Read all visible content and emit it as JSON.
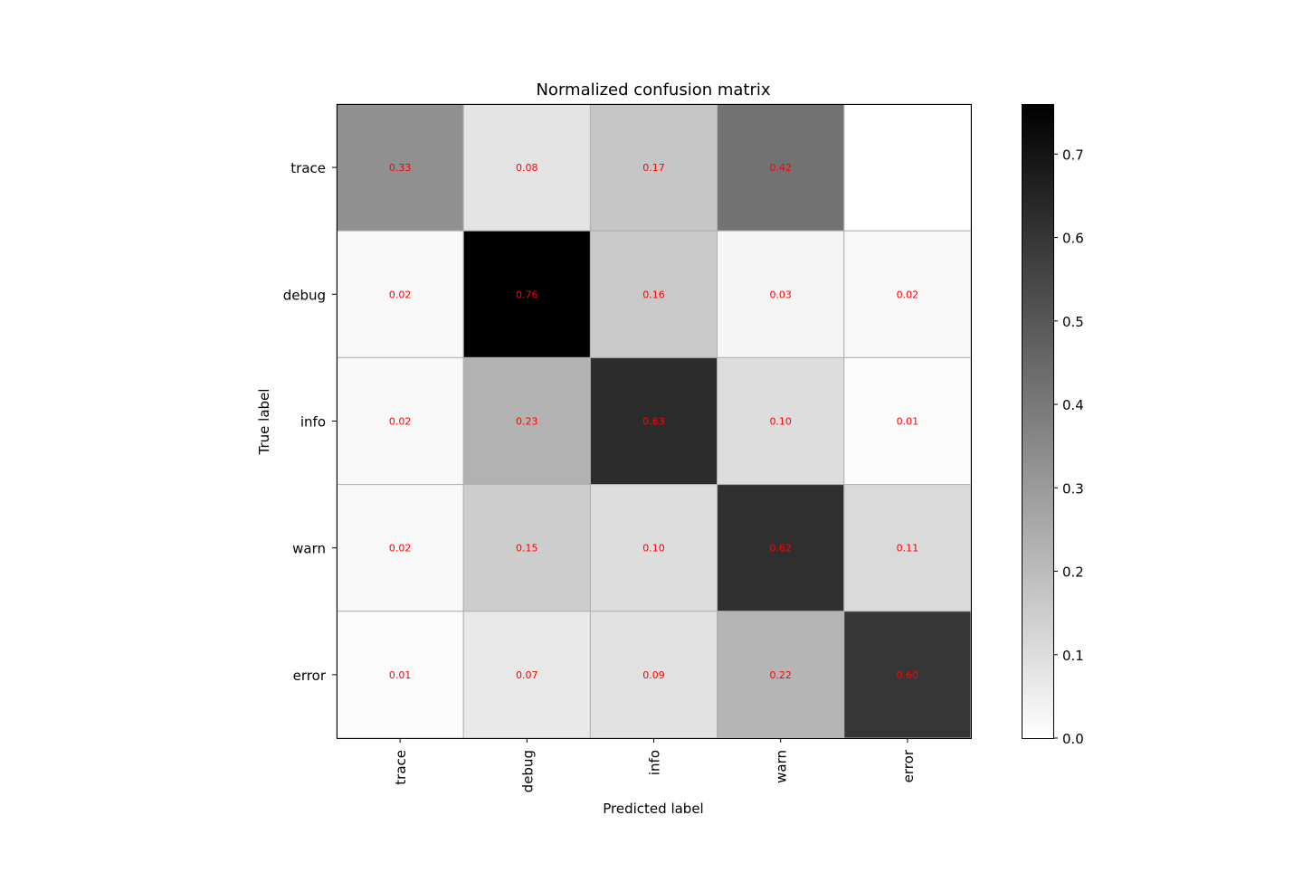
{
  "chart_data": {
    "type": "heatmap",
    "title": "Normalized confusion matrix",
    "xlabel": "Predicted label",
    "ylabel": "True label",
    "x_categories": [
      "trace",
      "debug",
      "info",
      "warn",
      "error"
    ],
    "y_categories": [
      "trace",
      "debug",
      "info",
      "warn",
      "error"
    ],
    "values": [
      [
        0.33,
        0.08,
        0.17,
        0.42,
        0.0
      ],
      [
        0.02,
        0.76,
        0.16,
        0.03,
        0.02
      ],
      [
        0.02,
        0.23,
        0.63,
        0.1,
        0.01
      ],
      [
        0.02,
        0.15,
        0.1,
        0.62,
        0.11
      ],
      [
        0.01,
        0.07,
        0.09,
        0.22,
        0.6
      ]
    ],
    "cell_labels": [
      [
        "0.33",
        "0.08",
        "0.17",
        "0.42",
        ""
      ],
      [
        "0.02",
        "0.76",
        "0.16",
        "0.03",
        "0.02"
      ],
      [
        "0.02",
        "0.23",
        "0.63",
        "0.10",
        "0.01"
      ],
      [
        "0.02",
        "0.15",
        "0.10",
        "0.62",
        "0.11"
      ],
      [
        "0.01",
        "0.07",
        "0.09",
        "0.22",
        "0.60"
      ]
    ],
    "colormap": "gray_r",
    "value_range": [
      0.0,
      0.76
    ],
    "colorbar_ticks": [
      "0.0",
      "0.1",
      "0.2",
      "0.3",
      "0.4",
      "0.5",
      "0.6",
      "0.7"
    ],
    "colorbar_tick_values": [
      0.0,
      0.1,
      0.2,
      0.3,
      0.4,
      0.5,
      0.6,
      0.7
    ],
    "annotation_color": "#ff0000",
    "grid": true,
    "grid_color": "#b0b0b0"
  }
}
